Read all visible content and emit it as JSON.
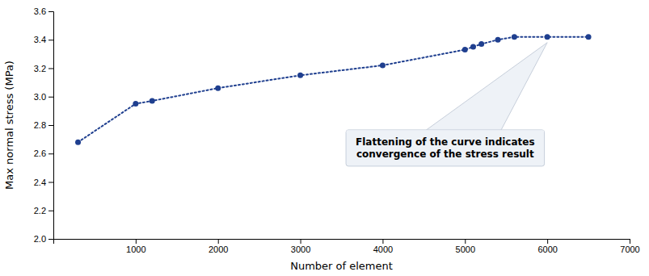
{
  "chart_data": {
    "type": "line",
    "x": [
      300,
      1000,
      1200,
      2000,
      3000,
      4000,
      5000,
      5100,
      5200,
      5400,
      5600,
      6000,
      6500
    ],
    "series": [
      {
        "color": "#1F3F8F",
        "marker": "circle",
        "line_style": "dotted",
        "values": [
          2.68,
          2.95,
          2.97,
          3.06,
          3.15,
          3.22,
          3.33,
          3.35,
          3.37,
          3.4,
          3.42,
          3.42,
          3.42
        ]
      }
    ],
    "xlabel": "Number of element",
    "ylabel": "Max normal stress (MPa)",
    "xlim": [
      0,
      7000
    ],
    "ylim": [
      2.0,
      3.6
    ],
    "xticks": [
      1000,
      2000,
      3000,
      4000,
      5000,
      6000,
      7000
    ],
    "yticks": [
      {
        "value": 2.0,
        "label": "2.0"
      },
      2.2,
      2.4,
      2.6,
      2.8,
      {
        "value": 3.0,
        "label": "3.0"
      },
      3.2,
      3.4,
      3.6
    ],
    "annotation": "Flattening of the curve indicates\nconvergence of the stress result",
    "grid": false
  }
}
